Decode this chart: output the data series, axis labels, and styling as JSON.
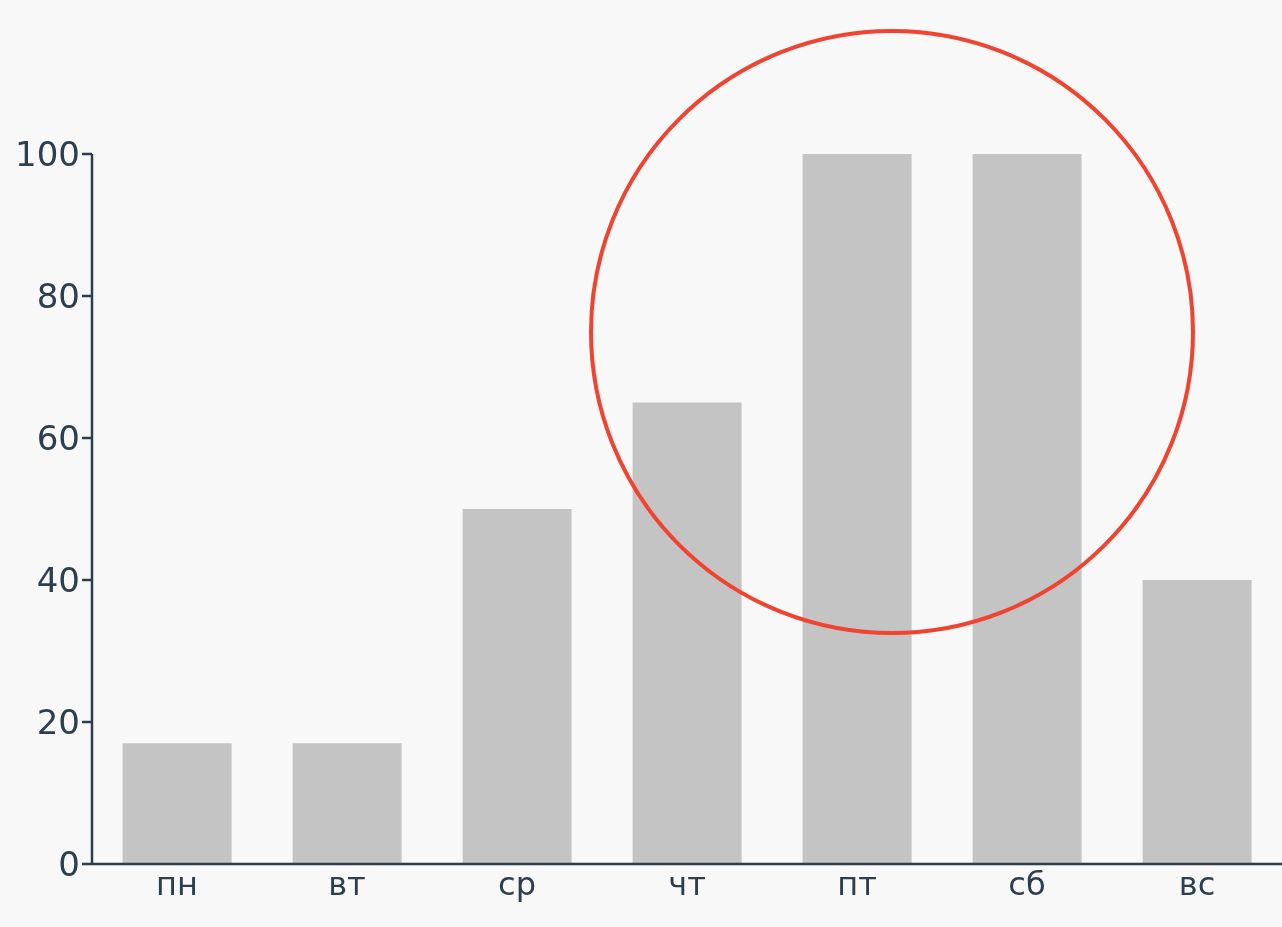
{
  "chart_data": {
    "type": "bar",
    "categories": [
      "пн",
      "вт",
      "ср",
      "чт",
      "пт",
      "сб",
      "вс"
    ],
    "values": [
      17,
      17,
      50,
      65,
      100,
      100,
      40
    ],
    "color": "#c4c4c4",
    "ylim": [
      0,
      100
    ],
    "yticks": [
      0,
      20,
      40,
      60,
      80,
      100
    ],
    "grid": false
  }
}
